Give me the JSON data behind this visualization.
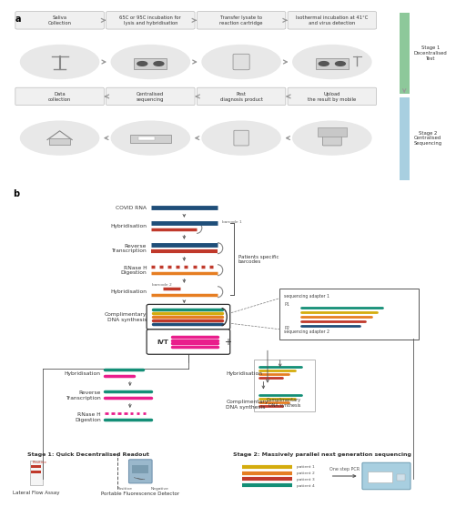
{
  "bg_color": "#ffffff",
  "panel_a": {
    "label": "a",
    "stage1_label": "Stage 1\nDecentralised\nTest",
    "stage2_label": "Stage 2\nCentralised\nSequencing",
    "stage1_color": "#8dc89a",
    "stage2_color": "#a8cfe0",
    "boxes_row1": [
      "Saliva\nCollection",
      "65C or 95C incubation for\nlysis and hybridisation",
      "Transfer lysate to\nreaction cartridge",
      "Isothermal incubation at 41°C\nand virus detection"
    ],
    "boxes_row2": [
      "Data\ncollection",
      "Centralised\nsequencing",
      "Post\ndiagnosis product",
      "Upload\nthe result by mobile"
    ]
  },
  "panel_b": {
    "label": "b",
    "ivt_label": "IVT",
    "patients_label": "Patients specific\nbarcodes",
    "seq_adapter1": "sequencing adapter 1",
    "seq_adapter2": "sequencing adapter 2",
    "p1_label": "P1",
    "p2_label": "P2",
    "stage1_title": "Stage 1: Quick Decentralised Readout",
    "stage2_title": "Stage 2: Massively parallel next generation sequencing",
    "lateral_flow": "Lateral Flow Assay",
    "portable_detector": "Portable Fluorescence Detector",
    "positive_label": "Positive",
    "negative_label": "Negative",
    "positive_label2": "Positive",
    "negative_label2": "Negative",
    "one_step_pcr": "One step PCR",
    "patients": [
      "patient 1",
      "patient 2",
      "patient 3",
      "patient 4"
    ],
    "barcode1": "barcode 1",
    "barcode2": "barcode 2",
    "colors": {
      "dark_blue": "#1f4e79",
      "red": "#c0392b",
      "orange": "#e67e22",
      "yellow": "#d4ac0d",
      "teal": "#148f77",
      "pink": "#e91e8c",
      "magenta": "#c2185b",
      "gray": "#888888",
      "light_gray": "#cccccc",
      "box_bg": "#f0f0f0",
      "box_border": "#bbbbbb",
      "arrow_gray": "#999999",
      "text_dark": "#333333"
    }
  }
}
